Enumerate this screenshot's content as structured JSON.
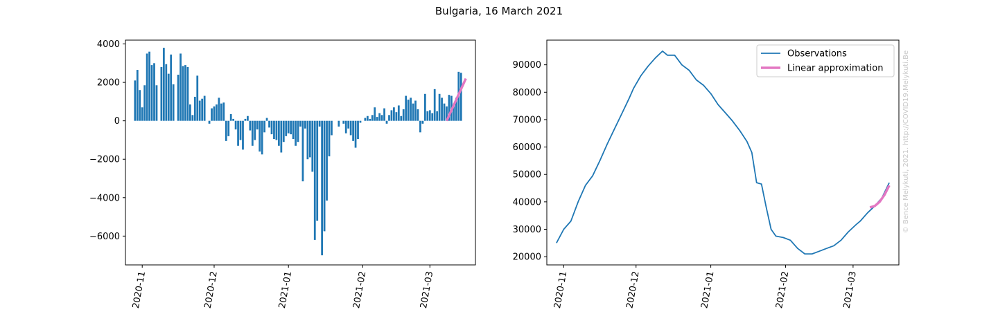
{
  "figure_title": "Bulgaria, 16 March 2021",
  "watermark": "© Bence Melykuti, 2021. http://COVID19.Melykuti.Be",
  "colors": {
    "observations": "#1f77b4",
    "approximation": "#e377c2"
  },
  "chart_data": [
    {
      "type": "bar",
      "xlabel": "",
      "ylabel": "",
      "x_range": [
        "2020-10-25",
        "2021-03-20"
      ],
      "ylim": [
        -7500,
        4200
      ],
      "yticks": [
        4000,
        2000,
        0,
        -2000,
        -4000,
        -6000
      ],
      "ytick_labels": [
        "4000",
        "2000",
        "0",
        "−2000",
        "−4000",
        "−6000"
      ],
      "xticks": [
        "2020-11-01",
        "2020-12-01",
        "2021-01-01",
        "2021-02-01",
        "2021-03-01"
      ],
      "xtick_labels": [
        "2020-11",
        "2020-12",
        "2021-01",
        "2021-02",
        "2021-03"
      ],
      "grid": false,
      "series": [
        {
          "start_date": "2020-10-29",
          "values": [
            2100,
            2650,
            1600,
            700,
            1850,
            3500,
            3600,
            2900,
            3000,
            1850,
            0,
            2800,
            3800,
            2950,
            2450,
            3450,
            1900,
            0,
            2400,
            3500,
            2850,
            2900,
            2800,
            850,
            300,
            1250,
            2350,
            1050,
            1150,
            1300,
            0,
            -150,
            650,
            750,
            850,
            1200,
            900,
            950,
            -1050,
            -800,
            350,
            100,
            -450,
            -1300,
            -1000,
            -1500,
            100,
            250,
            -500,
            -1300,
            -1000,
            -450,
            -1600,
            -1750,
            -600,
            150,
            -350,
            -700,
            -950,
            -1000,
            -1300,
            -1650,
            -1100,
            -800,
            -650,
            -700,
            -950,
            -1300,
            -1100,
            -300,
            -3150,
            -400,
            -2000,
            -1900,
            -2650,
            -6200,
            -5200,
            -300,
            -7000,
            -5750,
            -4150,
            -1850,
            -750,
            0,
            0,
            -300,
            0,
            -150,
            -650,
            -400,
            -750,
            -1050,
            -1400,
            -950,
            -100,
            0,
            150,
            250,
            100,
            300,
            700,
            200,
            400,
            300,
            650,
            -150,
            300,
            550,
            700,
            450,
            800,
            250,
            600,
            1300,
            1100,
            1200,
            900,
            1050,
            600,
            -600,
            -150,
            1400,
            500,
            550,
            400,
            1650,
            500,
            1400,
            1200,
            900,
            750,
            1350,
            1300,
            900,
            1200,
            2550,
            2500
          ],
          "color": "#1f77b4"
        },
        {
          "dates": [
            "2021-03-08",
            "2021-03-16"
          ],
          "values": [
            0,
            2200
          ],
          "color": "#e377c2"
        }
      ]
    },
    {
      "type": "line",
      "xlabel": "",
      "ylabel": "",
      "x_range": [
        "2020-10-25",
        "2021-03-20"
      ],
      "ylim": [
        17000,
        99000
      ],
      "yticks": [
        90000,
        80000,
        70000,
        60000,
        50000,
        40000,
        30000,
        20000
      ],
      "ytick_labels": [
        "90000",
        "80000",
        "70000",
        "60000",
        "50000",
        "40000",
        "30000",
        "20000"
      ],
      "xticks": [
        "2020-11-01",
        "2020-12-01",
        "2021-01-01",
        "2021-02-01",
        "2021-03-01"
      ],
      "xtick_labels": [
        "2020-11",
        "2020-12",
        "2021-01",
        "2021-02",
        "2021-03"
      ],
      "grid": false,
      "legend_position": "top-right",
      "series": [
        {
          "name": "Observations",
          "color": "#1f77b4",
          "points": [
            [
              "2020-10-29",
              25000
            ],
            [
              "2020-11-01",
              30000
            ],
            [
              "2020-11-04",
              33000
            ],
            [
              "2020-11-07",
              40000
            ],
            [
              "2020-11-10",
              46000
            ],
            [
              "2020-11-13",
              49500
            ],
            [
              "2020-11-16",
              55000
            ],
            [
              "2020-11-19",
              61000
            ],
            [
              "2020-11-22",
              66500
            ],
            [
              "2020-11-25",
              72000
            ],
            [
              "2020-11-28",
              77500
            ],
            [
              "2020-11-30",
              81500
            ],
            [
              "2020-12-03",
              86000
            ],
            [
              "2020-12-06",
              89500
            ],
            [
              "2020-12-09",
              92500
            ],
            [
              "2020-12-12",
              95000
            ],
            [
              "2020-12-14",
              93500
            ],
            [
              "2020-12-17",
              93500
            ],
            [
              "2020-12-20",
              90000
            ],
            [
              "2020-12-23",
              88000
            ],
            [
              "2020-12-26",
              84500
            ],
            [
              "2020-12-29",
              82500
            ],
            [
              "2021-01-01",
              79500
            ],
            [
              "2021-01-04",
              75500
            ],
            [
              "2021-01-07",
              72500
            ],
            [
              "2021-01-10",
              69500
            ],
            [
              "2021-01-13",
              66000
            ],
            [
              "2021-01-16",
              62000
            ],
            [
              "2021-01-18",
              58000
            ],
            [
              "2021-01-20",
              47000
            ],
            [
              "2021-01-22",
              46500
            ],
            [
              "2021-01-24",
              38000
            ],
            [
              "2021-01-26",
              30000
            ],
            [
              "2021-01-28",
              27500
            ],
            [
              "2021-01-31",
              27000
            ],
            [
              "2021-02-03",
              26000
            ],
            [
              "2021-02-06",
              23000
            ],
            [
              "2021-02-09",
              21000
            ],
            [
              "2021-02-12",
              21000
            ],
            [
              "2021-02-15",
              22000
            ],
            [
              "2021-02-18",
              23000
            ],
            [
              "2021-02-21",
              24000
            ],
            [
              "2021-02-24",
              26000
            ],
            [
              "2021-02-27",
              29000
            ],
            [
              "2021-03-02",
              31500
            ],
            [
              "2021-03-04",
              33000
            ],
            [
              "2021-03-07",
              36000
            ],
            [
              "2021-03-10",
              38500
            ],
            [
              "2021-03-13",
              41500
            ],
            [
              "2021-03-16",
              47000
            ]
          ]
        },
        {
          "name": "Linear approximation",
          "color": "#e377c2",
          "points": [
            [
              "2021-03-08",
              38000
            ],
            [
              "2021-03-10",
              38500
            ],
            [
              "2021-03-12",
              40000
            ],
            [
              "2021-03-14",
              42500
            ],
            [
              "2021-03-16",
              46000
            ]
          ]
        }
      ]
    }
  ]
}
